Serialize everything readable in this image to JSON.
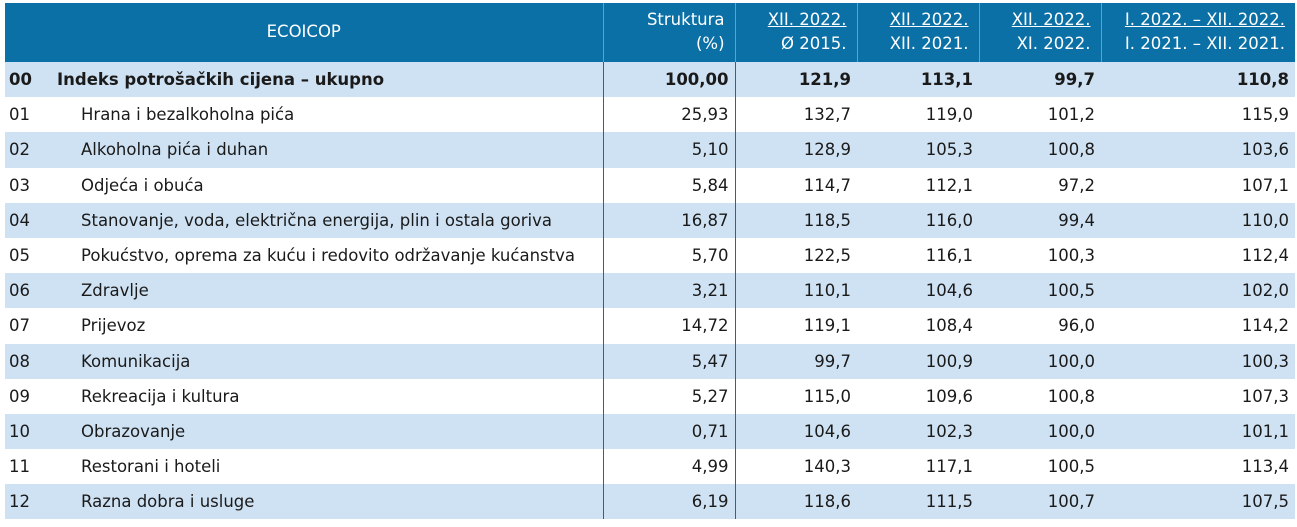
{
  "header": {
    "ecoicop": "ECOICOP",
    "struktura_line1": "Struktura",
    "struktura_line2": "(%)",
    "col_a_line1": "XII. 2022.",
    "col_a_line2": "Ø 2015.",
    "col_b_line1": "XII. 2022.",
    "col_b_line2": "XII. 2021.",
    "col_c_line1": "XII. 2022.",
    "col_c_line2": "XI. 2022.",
    "col_d_line1": "I. 2022. – XII. 2022.",
    "col_d_line2": "I. 2021. – XII. 2021."
  },
  "rows": [
    {
      "code": "00",
      "name": "Indeks potrošačkih cijena – ukupno",
      "struktura": "100,00",
      "a": "121,9",
      "b": "113,1",
      "c": "99,7",
      "d": "110,8"
    },
    {
      "code": "01",
      "name": "Hrana i bezalkoholna pića",
      "struktura": "25,93",
      "a": "132,7",
      "b": "119,0",
      "c": "101,2",
      "d": "115,9"
    },
    {
      "code": "02",
      "name": "Alkoholna pića i duhan",
      "struktura": "5,10",
      "a": "128,9",
      "b": "105,3",
      "c": "100,8",
      "d": "103,6"
    },
    {
      "code": "03",
      "name": "Odjeća i obuća",
      "struktura": "5,84",
      "a": "114,7",
      "b": "112,1",
      "c": "97,2",
      "d": "107,1"
    },
    {
      "code": "04",
      "name": "Stanovanje, voda, električna energija, plin i ostala goriva",
      "struktura": "16,87",
      "a": "118,5",
      "b": "116,0",
      "c": "99,4",
      "d": "110,0"
    },
    {
      "code": "05",
      "name": "Pokućstvo, oprema za kuću i redovito održavanje kućanstva",
      "struktura": "5,70",
      "a": "122,5",
      "b": "116,1",
      "c": "100,3",
      "d": "112,4"
    },
    {
      "code": "06",
      "name": "Zdravlje",
      "struktura": "3,21",
      "a": "110,1",
      "b": "104,6",
      "c": "100,5",
      "d": "102,0"
    },
    {
      "code": "07",
      "name": "Prijevoz",
      "struktura": "14,72",
      "a": "119,1",
      "b": "108,4",
      "c": "96,0",
      "d": "114,2"
    },
    {
      "code": "08",
      "name": "Komunikacija",
      "struktura": "5,47",
      "a": "99,7",
      "b": "100,9",
      "c": "100,0",
      "d": "100,3"
    },
    {
      "code": "09",
      "name": "Rekreacija i kultura",
      "struktura": "5,27",
      "a": "115,0",
      "b": "109,6",
      "c": "100,8",
      "d": "107,3"
    },
    {
      "code": "10",
      "name": "Obrazovanje",
      "struktura": "0,71",
      "a": "104,6",
      "b": "102,3",
      "c": "100,0",
      "d": "101,1"
    },
    {
      "code": "11",
      "name": "Restorani i hoteli",
      "struktura": "4,99",
      "a": "140,3",
      "b": "117,1",
      "c": "100,5",
      "d": "113,4"
    },
    {
      "code": "12",
      "name": "Razna dobra i usluge",
      "struktura": "6,19",
      "a": "118,6",
      "b": "111,5",
      "c": "100,7",
      "d": "107,5"
    }
  ]
}
